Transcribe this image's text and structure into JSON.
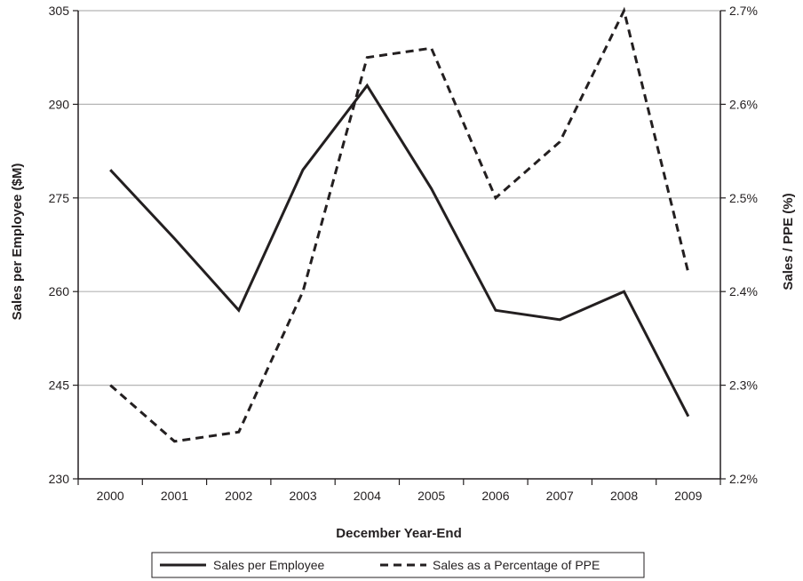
{
  "chart_data": {
    "type": "line",
    "categories": [
      "2000",
      "2001",
      "2002",
      "2003",
      "2004",
      "2005",
      "2006",
      "2007",
      "2008",
      "2009"
    ],
    "xlabel": "December Year-End",
    "ylabel": "Sales per Employee ($M)",
    "y2label": "Sales / PPE (%)",
    "ylim": [
      230,
      305
    ],
    "yticks": [
      "230",
      "245",
      "260",
      "275",
      "290",
      "305"
    ],
    "y2lim": [
      2.2,
      2.7
    ],
    "y2ticks": [
      "2.2%",
      "2.3%",
      "2.4%",
      "2.5%",
      "2.6%",
      "2.7%"
    ],
    "grid": true,
    "legend_position": "bottom",
    "series": [
      {
        "name": "Sales per Employee",
        "axis": "left",
        "style": "solid",
        "color": "#231f20",
        "values": [
          279.5,
          268.5,
          257,
          279.5,
          293,
          276.5,
          257,
          255.5,
          260,
          240
        ]
      },
      {
        "name": "Sales as a Percentage of PPE",
        "axis": "right",
        "style": "dashed",
        "color": "#231f20",
        "values": [
          2.3,
          2.24,
          2.25,
          2.4,
          2.65,
          2.66,
          2.5,
          2.56,
          2.7,
          2.42
        ]
      }
    ]
  }
}
